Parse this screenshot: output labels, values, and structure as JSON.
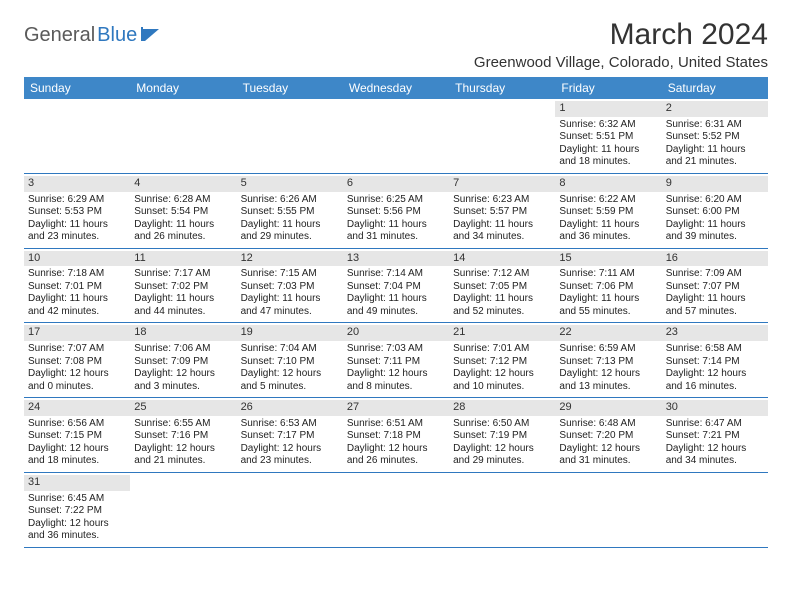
{
  "logo": {
    "general": "General",
    "blue": "Blue"
  },
  "title": "March 2024",
  "subtitle": "Greenwood Village, Colorado, United States",
  "colors": {
    "header_bg": "#3e87c8",
    "accent": "#2f78bf",
    "daynum_bg": "#e6e6e6",
    "text": "#222222",
    "page_bg": "#ffffff"
  },
  "weekdays": [
    "Sunday",
    "Monday",
    "Tuesday",
    "Wednesday",
    "Thursday",
    "Friday",
    "Saturday"
  ],
  "weeks": [
    [
      null,
      null,
      null,
      null,
      null,
      {
        "n": "1",
        "sunrise": "Sunrise: 6:32 AM",
        "sunset": "Sunset: 5:51 PM",
        "daylight": "Daylight: 11 hours and 18 minutes."
      },
      {
        "n": "2",
        "sunrise": "Sunrise: 6:31 AM",
        "sunset": "Sunset: 5:52 PM",
        "daylight": "Daylight: 11 hours and 21 minutes."
      }
    ],
    [
      {
        "n": "3",
        "sunrise": "Sunrise: 6:29 AM",
        "sunset": "Sunset: 5:53 PM",
        "daylight": "Daylight: 11 hours and 23 minutes."
      },
      {
        "n": "4",
        "sunrise": "Sunrise: 6:28 AM",
        "sunset": "Sunset: 5:54 PM",
        "daylight": "Daylight: 11 hours and 26 minutes."
      },
      {
        "n": "5",
        "sunrise": "Sunrise: 6:26 AM",
        "sunset": "Sunset: 5:55 PM",
        "daylight": "Daylight: 11 hours and 29 minutes."
      },
      {
        "n": "6",
        "sunrise": "Sunrise: 6:25 AM",
        "sunset": "Sunset: 5:56 PM",
        "daylight": "Daylight: 11 hours and 31 minutes."
      },
      {
        "n": "7",
        "sunrise": "Sunrise: 6:23 AM",
        "sunset": "Sunset: 5:57 PM",
        "daylight": "Daylight: 11 hours and 34 minutes."
      },
      {
        "n": "8",
        "sunrise": "Sunrise: 6:22 AM",
        "sunset": "Sunset: 5:59 PM",
        "daylight": "Daylight: 11 hours and 36 minutes."
      },
      {
        "n": "9",
        "sunrise": "Sunrise: 6:20 AM",
        "sunset": "Sunset: 6:00 PM",
        "daylight": "Daylight: 11 hours and 39 minutes."
      }
    ],
    [
      {
        "n": "10",
        "sunrise": "Sunrise: 7:18 AM",
        "sunset": "Sunset: 7:01 PM",
        "daylight": "Daylight: 11 hours and 42 minutes."
      },
      {
        "n": "11",
        "sunrise": "Sunrise: 7:17 AM",
        "sunset": "Sunset: 7:02 PM",
        "daylight": "Daylight: 11 hours and 44 minutes."
      },
      {
        "n": "12",
        "sunrise": "Sunrise: 7:15 AM",
        "sunset": "Sunset: 7:03 PM",
        "daylight": "Daylight: 11 hours and 47 minutes."
      },
      {
        "n": "13",
        "sunrise": "Sunrise: 7:14 AM",
        "sunset": "Sunset: 7:04 PM",
        "daylight": "Daylight: 11 hours and 49 minutes."
      },
      {
        "n": "14",
        "sunrise": "Sunrise: 7:12 AM",
        "sunset": "Sunset: 7:05 PM",
        "daylight": "Daylight: 11 hours and 52 minutes."
      },
      {
        "n": "15",
        "sunrise": "Sunrise: 7:11 AM",
        "sunset": "Sunset: 7:06 PM",
        "daylight": "Daylight: 11 hours and 55 minutes."
      },
      {
        "n": "16",
        "sunrise": "Sunrise: 7:09 AM",
        "sunset": "Sunset: 7:07 PM",
        "daylight": "Daylight: 11 hours and 57 minutes."
      }
    ],
    [
      {
        "n": "17",
        "sunrise": "Sunrise: 7:07 AM",
        "sunset": "Sunset: 7:08 PM",
        "daylight": "Daylight: 12 hours and 0 minutes."
      },
      {
        "n": "18",
        "sunrise": "Sunrise: 7:06 AM",
        "sunset": "Sunset: 7:09 PM",
        "daylight": "Daylight: 12 hours and 3 minutes."
      },
      {
        "n": "19",
        "sunrise": "Sunrise: 7:04 AM",
        "sunset": "Sunset: 7:10 PM",
        "daylight": "Daylight: 12 hours and 5 minutes."
      },
      {
        "n": "20",
        "sunrise": "Sunrise: 7:03 AM",
        "sunset": "Sunset: 7:11 PM",
        "daylight": "Daylight: 12 hours and 8 minutes."
      },
      {
        "n": "21",
        "sunrise": "Sunrise: 7:01 AM",
        "sunset": "Sunset: 7:12 PM",
        "daylight": "Daylight: 12 hours and 10 minutes."
      },
      {
        "n": "22",
        "sunrise": "Sunrise: 6:59 AM",
        "sunset": "Sunset: 7:13 PM",
        "daylight": "Daylight: 12 hours and 13 minutes."
      },
      {
        "n": "23",
        "sunrise": "Sunrise: 6:58 AM",
        "sunset": "Sunset: 7:14 PM",
        "daylight": "Daylight: 12 hours and 16 minutes."
      }
    ],
    [
      {
        "n": "24",
        "sunrise": "Sunrise: 6:56 AM",
        "sunset": "Sunset: 7:15 PM",
        "daylight": "Daylight: 12 hours and 18 minutes."
      },
      {
        "n": "25",
        "sunrise": "Sunrise: 6:55 AM",
        "sunset": "Sunset: 7:16 PM",
        "daylight": "Daylight: 12 hours and 21 minutes."
      },
      {
        "n": "26",
        "sunrise": "Sunrise: 6:53 AM",
        "sunset": "Sunset: 7:17 PM",
        "daylight": "Daylight: 12 hours and 23 minutes."
      },
      {
        "n": "27",
        "sunrise": "Sunrise: 6:51 AM",
        "sunset": "Sunset: 7:18 PM",
        "daylight": "Daylight: 12 hours and 26 minutes."
      },
      {
        "n": "28",
        "sunrise": "Sunrise: 6:50 AM",
        "sunset": "Sunset: 7:19 PM",
        "daylight": "Daylight: 12 hours and 29 minutes."
      },
      {
        "n": "29",
        "sunrise": "Sunrise: 6:48 AM",
        "sunset": "Sunset: 7:20 PM",
        "daylight": "Daylight: 12 hours and 31 minutes."
      },
      {
        "n": "30",
        "sunrise": "Sunrise: 6:47 AM",
        "sunset": "Sunset: 7:21 PM",
        "daylight": "Daylight: 12 hours and 34 minutes."
      }
    ],
    [
      {
        "n": "31",
        "sunrise": "Sunrise: 6:45 AM",
        "sunset": "Sunset: 7:22 PM",
        "daylight": "Daylight: 12 hours and 36 minutes."
      },
      null,
      null,
      null,
      null,
      null,
      null
    ]
  ]
}
